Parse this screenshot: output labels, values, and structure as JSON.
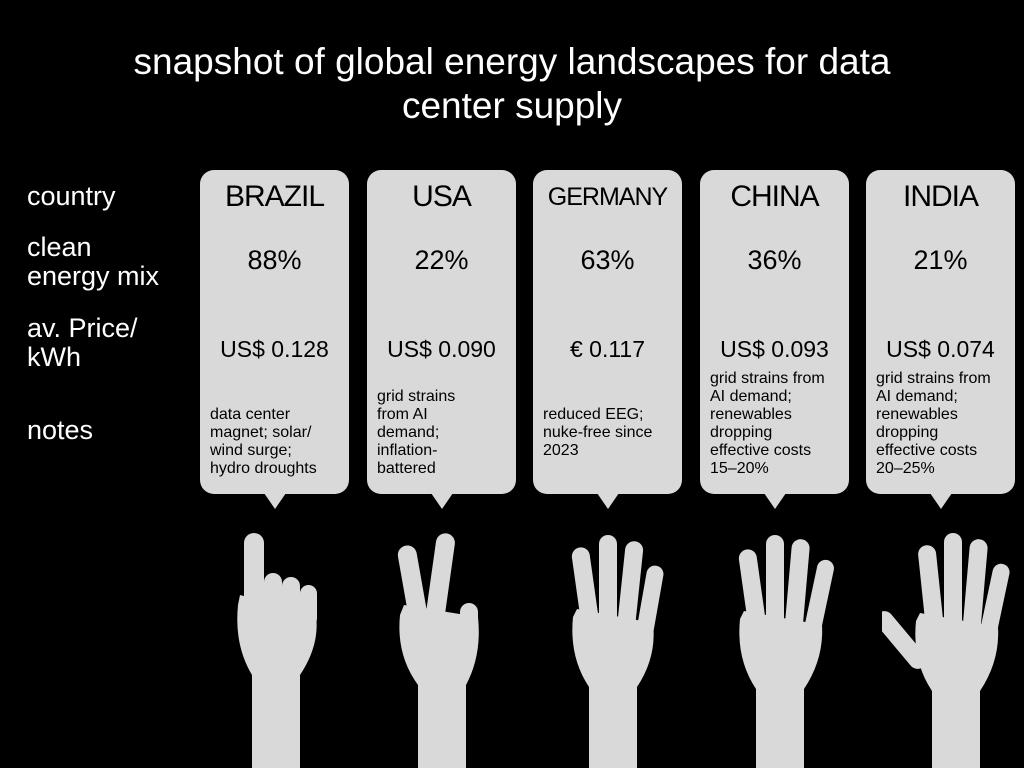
{
  "title": "snapshot of global energy landscapes for data\ncenter supply",
  "row_labels": {
    "country": "country",
    "mix": "clean\nenergy mix",
    "price": "av. Price/\nkWh",
    "notes": "notes"
  },
  "countries": [
    {
      "name": "BRAZIL",
      "mix": "88%",
      "price": "US$ 0.128",
      "notes": "data center\nmagnet; solar/\nwind surge;\nhydro droughts",
      "hand_icon": "hand-one-finger-icon"
    },
    {
      "name": "USA",
      "mix": "22%",
      "price": "US$ 0.090",
      "notes": "grid strains\nfrom AI\ndemand;\ninflation-\nbattered",
      "hand_icon": "hand-two-fingers-icon"
    },
    {
      "name": "GERMANY",
      "mix": "63%",
      "price": "€ 0.117",
      "notes": "reduced EEG;\nnuke-free since\n2023",
      "hand_icon": "hand-three-fingers-icon"
    },
    {
      "name": "CHINA",
      "mix": "36%",
      "price": "US$ 0.093",
      "notes": "grid strains from\nAI demand;\nrenewables\ndropping\neffective costs\n15–20%",
      "hand_icon": "hand-four-fingers-icon"
    },
    {
      "name": "INDIA",
      "mix": "21%",
      "price": "US$ 0.074",
      "notes": "grid strains from\nAI demand;\nrenewables\ndropping\neffective costs\n20–25%",
      "hand_icon": "hand-five-fingers-icon"
    }
  ],
  "colors": {
    "background": "#000000",
    "card": "#d9d9d9",
    "hand": "#d9d9d9",
    "text_light": "#ffffff",
    "text_dark": "#000000"
  }
}
